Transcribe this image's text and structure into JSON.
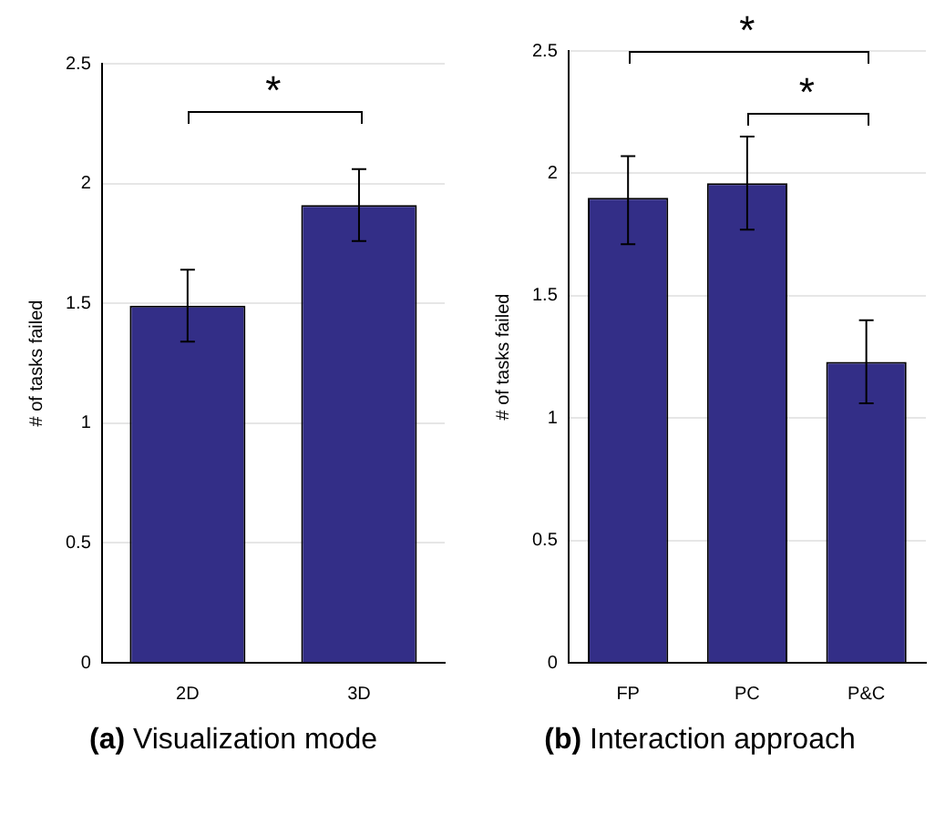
{
  "chart_data": [
    {
      "type": "bar",
      "title": "(a) Visualization mode",
      "ylabel": "# of tasks failed",
      "categories": [
        "2D",
        "3D"
      ],
      "values": [
        1.49,
        1.91
      ],
      "errors": [
        0.15,
        0.15
      ],
      "color": "#332e87",
      "ylim": [
        0,
        2.5
      ],
      "yticks": [
        0,
        0.5,
        1,
        1.5,
        2,
        2.5
      ],
      "grid": "y",
      "legend": false,
      "annotations": [
        "*"
      ]
    },
    {
      "type": "bar",
      "title": "(b) Interaction approach",
      "ylabel": "# of tasks failed",
      "categories": [
        "FP",
        "PC",
        "P&C"
      ],
      "values": [
        1.9,
        1.96,
        1.23
      ],
      "errors": [
        [
          1.71,
          2.07
        ],
        [
          1.77,
          2.15
        ],
        [
          1.06,
          1.4
        ]
      ],
      "color": "#332e87",
      "ylim": [
        0,
        2.5
      ],
      "yticks": [
        0,
        0.5,
        1,
        1.5,
        2,
        2.5
      ],
      "grid": "y",
      "legend": false,
      "annotations": [
        "*",
        "*"
      ]
    }
  ]
}
